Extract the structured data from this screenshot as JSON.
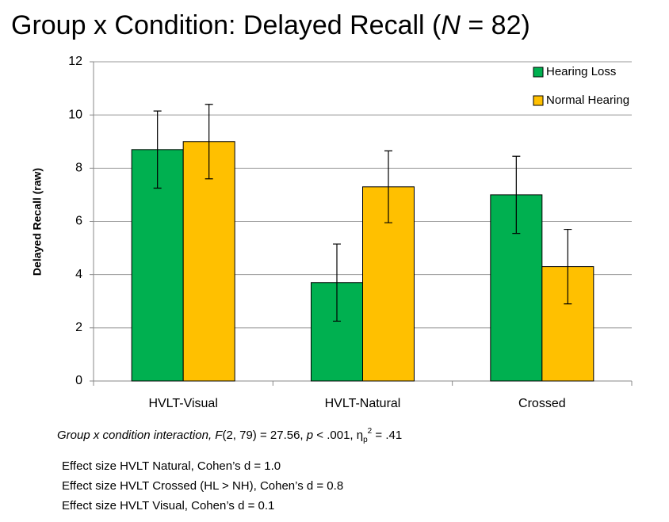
{
  "chart_data": {
    "type": "bar",
    "title": [
      "Group x Condition: Delayed Recall (",
      "N",
      " = 82)"
    ],
    "y_label": "Delayed Recall (raw)",
    "categories": [
      "HVLT-Visual",
      "HVLT-Natural",
      "Crossed"
    ],
    "series": [
      {
        "name": "Hearing Loss",
        "color": "#00b050",
        "values": [
          8.7,
          3.7,
          7.0
        ],
        "errors": [
          1.45,
          1.45,
          1.45
        ]
      },
      {
        "name": "Normal Hearing",
        "color": "#ffc000",
        "values": [
          9.0,
          7.3,
          4.3
        ],
        "errors": [
          1.4,
          1.35,
          1.4
        ]
      }
    ],
    "ylim": [
      0,
      12
    ],
    "yticks": [
      0,
      2,
      4,
      6,
      8,
      10,
      12
    ],
    "grid": true,
    "legend": "top-right",
    "annotation": [
      "Group x condition interaction, ",
      "F",
      "(2, 79) = 27.56, ",
      "p",
      " < .001, η",
      "p",
      "2",
      " = .41"
    ],
    "notes": [
      "Effect size HVLT Natural, Cohen’s d = 1.0",
      "Effect size HVLT Crossed (HL > NH), Cohen’s d = 0.8",
      "Effect size HVLT Visual, Cohen’s d = 0.1"
    ]
  }
}
